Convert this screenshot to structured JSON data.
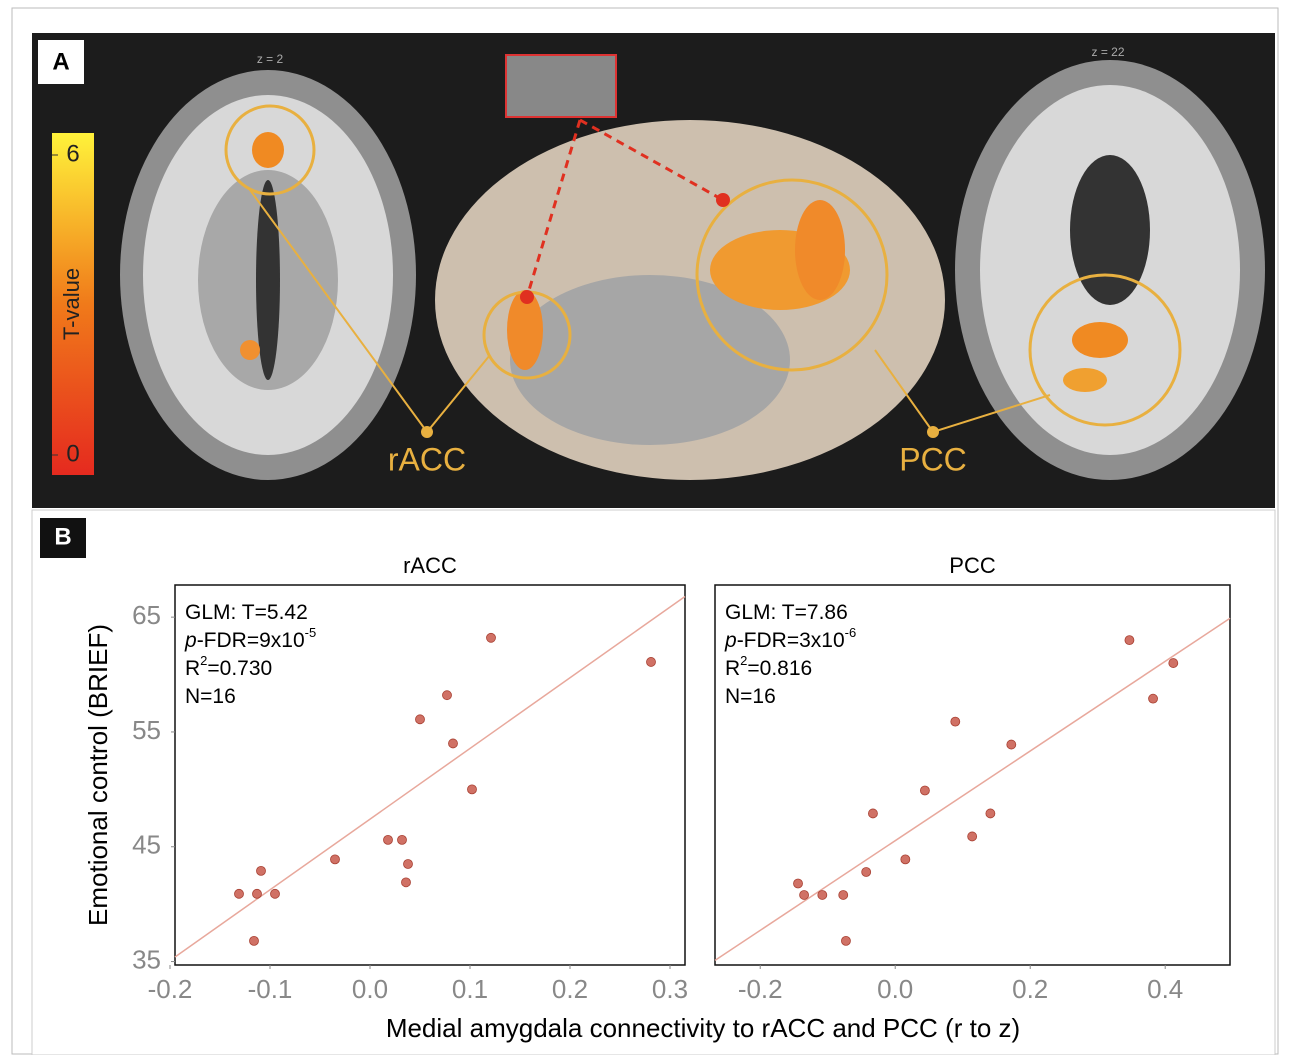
{
  "panel_a": {
    "label": "A",
    "slices": [
      "z = 2",
      "z = 22"
    ],
    "colorbar": {
      "title": "T-value",
      "lim": [
        0,
        6
      ],
      "ticks": [
        0,
        6
      ]
    },
    "regions": [
      "rACC",
      "PCC"
    ]
  },
  "panel_b": {
    "label": "B",
    "ylabel": "Emotional control (BRIEF)",
    "xlabel": "Medial amygdala connectivity to rACC and PCC (r to z)"
  },
  "chart_data": [
    {
      "type": "scatter",
      "title": "rACC",
      "color": "#c8584a",
      "line_color": "#e8a89c",
      "stats": [
        [
          {
            "t": "GLM: T=5.42"
          }
        ],
        [
          {
            "t": "p",
            "style": "italic"
          },
          {
            "t": "-FDR=9x10"
          },
          {
            "t": "-5",
            "style": "sup"
          }
        ],
        [
          {
            "t": "R"
          },
          {
            "t": "2",
            "style": "sup"
          },
          {
            "t": "=0.730"
          }
        ],
        [
          {
            "t": "N=16"
          }
        ]
      ],
      "x": [
        -0.131,
        -0.113,
        -0.109,
        -0.095,
        -0.116,
        -0.035,
        0.018,
        0.032,
        0.038,
        0.036,
        0.05,
        0.077,
        0.083,
        0.102,
        0.121,
        0.281
      ],
      "values": [
        40.9,
        40.9,
        42.9,
        40.9,
        36.8,
        43.9,
        45.6,
        45.6,
        43.5,
        41.9,
        56.1,
        58.2,
        54.0,
        50.0,
        63.2,
        61.1
      ],
      "fit": {
        "x": [
          -0.195,
          0.315
        ],
        "y": [
          35.4,
          66.8
        ]
      },
      "xlim": [
        -0.195,
        0.315
      ],
      "ylim": [
        34.7,
        67.8
      ],
      "xticks": [
        -0.2,
        -0.1,
        {
          "value": 0,
          "label": "0.0"
        },
        0.1,
        0.2,
        0.3
      ],
      "yticks": [
        35,
        45,
        55,
        65
      ]
    },
    {
      "type": "scatter",
      "title": "PCC",
      "color": "#c8584a",
      "line_color": "#e8a89c",
      "stats": [
        [
          {
            "t": "GLM: T=7.86"
          }
        ],
        [
          {
            "t": "p",
            "style": "italic"
          },
          {
            "t": "-FDR=3x10"
          },
          {
            "t": "-6",
            "style": "sup"
          }
        ],
        [
          {
            "t": "R"
          },
          {
            "t": "2",
            "style": "sup"
          },
          {
            "t": "=0.816"
          }
        ],
        [
          {
            "t": "N=16"
          }
        ]
      ],
      "x": [
        -0.144,
        -0.135,
        -0.108,
        -0.077,
        -0.073,
        -0.043,
        -0.033,
        0.015,
        0.044,
        0.089,
        0.114,
        0.141,
        0.172,
        0.347,
        0.382,
        0.412
      ],
      "values": [
        41.8,
        40.8,
        40.8,
        40.8,
        36.8,
        42.8,
        47.9,
        43.9,
        49.9,
        55.9,
        45.9,
        47.9,
        53.9,
        63.0,
        57.9,
        61.0
      ],
      "fit": {
        "x": [
          -0.267,
          0.496
        ],
        "y": [
          35.1,
          64.9
        ]
      },
      "xlim": [
        -0.267,
        0.496
      ],
      "ylim": [
        34.7,
        67.8
      ],
      "xticks": [
        -0.2,
        {
          "value": 0,
          "label": "0.0"
        },
        0.2,
        0.4
      ]
    }
  ]
}
